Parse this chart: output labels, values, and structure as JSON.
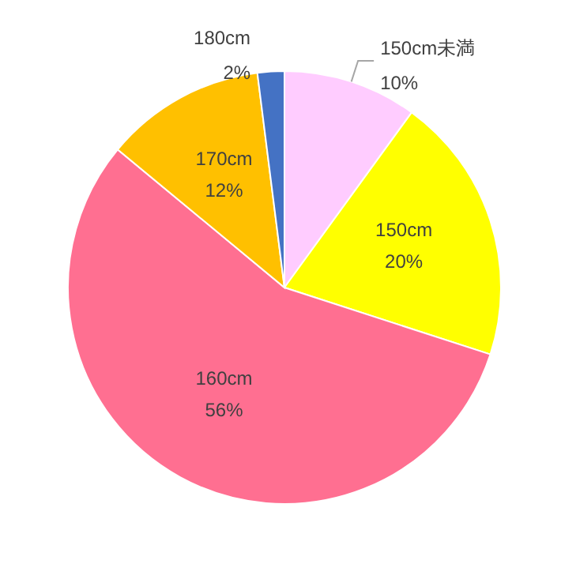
{
  "chart_data": {
    "type": "pie",
    "categories": [
      "150cm未満",
      "150cm",
      "160cm",
      "170cm",
      "180cm"
    ],
    "values": [
      10,
      20,
      56,
      12,
      2
    ],
    "value_labels": [
      "10%",
      "20%",
      "56%",
      "12%",
      "2%"
    ],
    "colors": [
      "#ffccff",
      "#ffff00",
      "#ff6f91",
      "#ffc000",
      "#4472c4"
    ],
    "legend": false
  }
}
